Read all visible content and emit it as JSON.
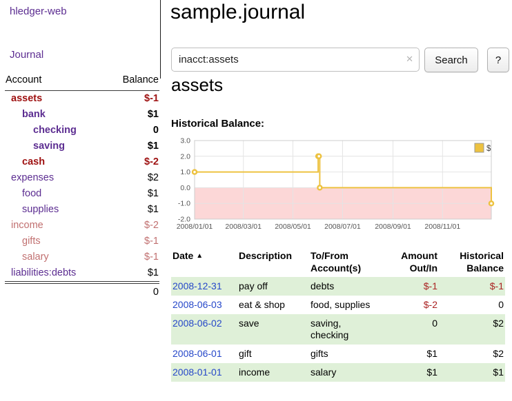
{
  "app": {
    "title": "hledger-web",
    "nav_journal": "Journal"
  },
  "sidebar": {
    "header": {
      "account": "Account",
      "balance": "Balance"
    },
    "accounts": [
      {
        "name": "assets",
        "indent": 1,
        "balance": "$-1",
        "negative": true,
        "bold": true
      },
      {
        "name": "bank",
        "indent": 2,
        "balance": "$1",
        "negative": false,
        "bold": true
      },
      {
        "name": "checking",
        "indent": 3,
        "balance": "0",
        "negative": false,
        "bold": true
      },
      {
        "name": "saving",
        "indent": 3,
        "balance": "$1",
        "negative": false,
        "bold": true
      },
      {
        "name": "cash",
        "indent": 2,
        "balance": "$-2",
        "negative": true,
        "bold": true
      },
      {
        "name": "expenses",
        "indent": 1,
        "balance": "$2",
        "negative": false,
        "bold": false
      },
      {
        "name": "food",
        "indent": 2,
        "balance": "$1",
        "negative": false,
        "bold": false
      },
      {
        "name": "supplies",
        "indent": 2,
        "balance": "$1",
        "negative": false,
        "bold": false
      },
      {
        "name": "income",
        "indent": 1,
        "balance": "$-2",
        "negative": true,
        "bold": false
      },
      {
        "name": "gifts",
        "indent": 2,
        "balance": "$-1",
        "negative": true,
        "bold": false
      },
      {
        "name": "salary",
        "indent": 2,
        "balance": "$-1",
        "negative": true,
        "bold": false
      },
      {
        "name": "liabilities:debts",
        "indent": 1,
        "balance": "$1",
        "negative": false,
        "bold": false
      }
    ],
    "total": "0"
  },
  "main": {
    "title": "sample.journal",
    "search": {
      "value": "inacct:assets",
      "clear_icon": "✕",
      "button_label": "Search",
      "help_label": "?"
    },
    "account_heading": "assets",
    "chart_heading": "Historical Balance:"
  },
  "chart_data": {
    "type": "line",
    "title": "Historical Balance",
    "step": true,
    "legend": {
      "label": "$",
      "position": "top-right"
    },
    "series": [
      {
        "name": "$",
        "color": "#edc240",
        "points": [
          {
            "date": "2008-01-01",
            "day": 0,
            "value": 1
          },
          {
            "date": "2008-06-01",
            "day": 152,
            "value": 2
          },
          {
            "date": "2008-06-02",
            "day": 153,
            "value": 2
          },
          {
            "date": "2008-06-03",
            "day": 154,
            "value": 0
          },
          {
            "date": "2008-12-31",
            "day": 365,
            "value": -1
          }
        ]
      }
    ],
    "x_ticks": [
      {
        "day": 0,
        "label": "2008/01/01"
      },
      {
        "day": 60,
        "label": "2008/03/01"
      },
      {
        "day": 121,
        "label": "2008/05/01"
      },
      {
        "day": 182,
        "label": "2008/07/01"
      },
      {
        "day": 244,
        "label": "2008/09/01"
      },
      {
        "day": 305,
        "label": "2008/11/01"
      }
    ],
    "y_ticks": [
      "3.0",
      "2.0",
      "1.0",
      "0.0",
      "-1.0",
      "-2.0"
    ],
    "xlim": [
      0,
      365
    ],
    "ylim": [
      -2,
      3
    ],
    "grid": true,
    "negative_region_color": "#fcd7d7"
  },
  "register": {
    "headers": {
      "date": "Date",
      "sort_icon": "▲",
      "description": "Description",
      "tofrom_line1": "To/From",
      "tofrom_line2": "Account(s)",
      "amount_line1": "Amount",
      "amount_line2": "Out/In",
      "balance_line1": "Historical",
      "balance_line2": "Balance"
    },
    "rows": [
      {
        "date": "2008-12-31",
        "description": "pay off",
        "accounts": "debts",
        "amount": "$-1",
        "amount_negative": true,
        "balance": "$-1",
        "balance_negative": true
      },
      {
        "date": "2008-06-03",
        "description": "eat & shop",
        "accounts": "food, supplies",
        "amount": "$-2",
        "amount_negative": true,
        "balance": "0",
        "balance_negative": false
      },
      {
        "date": "2008-06-02",
        "description": "save",
        "accounts": "saving, checking",
        "amount": "0",
        "amount_negative": false,
        "balance": "$2",
        "balance_negative": false
      },
      {
        "date": "2008-06-01",
        "description": "gift",
        "accounts": "gifts",
        "amount": "$1",
        "amount_negative": false,
        "balance": "$2",
        "balance_negative": false
      },
      {
        "date": "2008-01-01",
        "description": "income",
        "accounts": "salary",
        "amount": "$1",
        "amount_negative": false,
        "balance": "$1",
        "balance_negative": false
      }
    ]
  },
  "colors": {
    "link_purple": "#5c2d91",
    "date_link_blue": "#2547c9",
    "negative_bold": "#9e1111",
    "negative_soft": "#c17070",
    "negative_register": "#aa2222",
    "row_green": "#dff0d8",
    "chart_series": "#edc240",
    "chart_negative_region": "#fcd7d7"
  }
}
